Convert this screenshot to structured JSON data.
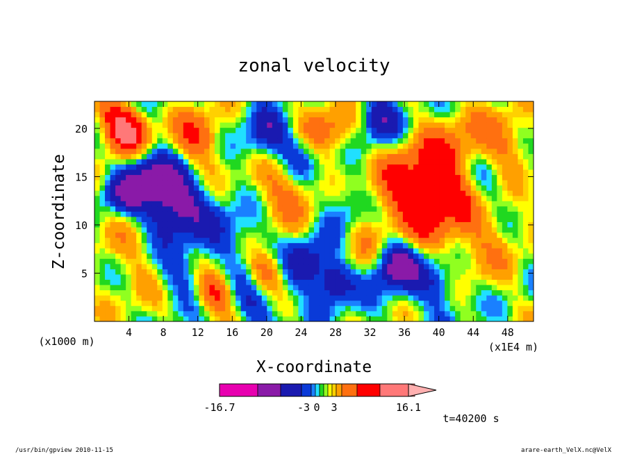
{
  "chart_data": {
    "type": "heatmap",
    "title": "zonal velocity",
    "xlabel": "X-coordinate",
    "ylabel": "Z-coordinate",
    "x_unit_left": "(x1000 m)",
    "x_unit_right": "(x1E4 m)",
    "xlim": [
      0,
      51
    ],
    "ylim": [
      0,
      22.8
    ],
    "x_ticks": [
      4,
      8,
      12,
      16,
      20,
      24,
      28,
      32,
      36,
      40,
      44,
      48
    ],
    "y_ticks": [
      5,
      10,
      15,
      20
    ],
    "colorbar": {
      "min_label": "-16.7",
      "max_label": "16.1",
      "tick_labels": [
        "-3",
        "0",
        "3"
      ],
      "colors": [
        "#e800b0",
        "#8a1aa8",
        "#1a1ab0",
        "#0a3ad8",
        "#1a80ff",
        "#20e0ff",
        "#20d820",
        "#90ff20",
        "#ffff00",
        "#ffd000",
        "#ffa000",
        "#ff7010",
        "#ff0000",
        "#ff7878",
        "#ffb0b0"
      ]
    },
    "time_label": "t=40200 s"
  },
  "footer": {
    "left": "/usr/bin/gpview  2010-11-15",
    "right": "arare-earth_VelX.nc@VelX"
  }
}
